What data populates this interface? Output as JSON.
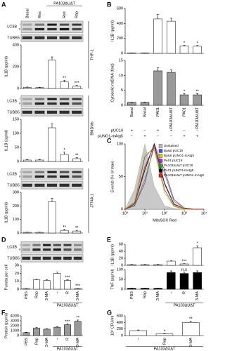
{
  "chart_data": [
    {
      "type": "bar",
      "panel": "A",
      "cell_line": "THP-1",
      "blot": {
        "rows": [
          "LC3B",
          "TUBB5"
        ],
        "bands": [
          "I",
          "II"
        ]
      },
      "ylabel": "IL1B (pg/ml)",
      "categories": [
        "Basal",
        "Res",
        null,
        "Res",
        "Rap"
      ],
      "group_label": "PA103ΔUΔT",
      "values": [
        10,
        8,
        260,
        60,
        20
      ],
      "errors": [
        3,
        2,
        30,
        15,
        8
      ],
      "significance": [
        null,
        null,
        null,
        "**",
        "***"
      ],
      "color": "#ffffff",
      "ylim": [
        0,
        400
      ],
      "yticks": [
        0,
        200,
        400
      ]
    },
    {
      "type": "bar",
      "cell_line": "BMDMs",
      "blot": {
        "rows": [
          "LC3B",
          "TUBB5"
        ],
        "bands": [
          "I",
          "II"
        ]
      },
      "ylabel": "IL1B (pg/ml)",
      "values": [
        5,
        5,
        120,
        25,
        10
      ],
      "errors": [
        2,
        2,
        15,
        8,
        4
      ],
      "significance": [
        null,
        null,
        null,
        "*",
        "**"
      ],
      "color": "#ffffff",
      "ylim": [
        0,
        150
      ],
      "yticks": [
        0,
        50,
        100,
        150
      ]
    },
    {
      "type": "bar",
      "cell_line": "J774A.1",
      "blot": {
        "rows": [
          "LC3B",
          "TUBB5"
        ],
        "bands": [
          "I",
          "II"
        ]
      },
      "ylabel": "IL1B (pg/ml)",
      "values": [
        5,
        5,
        230,
        20,
        15
      ],
      "errors": [
        2,
        2,
        25,
        6,
        5
      ],
      "significance": [
        null,
        null,
        null,
        "**",
        "**"
      ],
      "color": "#ffffff",
      "ylim": [
        0,
        300
      ],
      "yticks": [
        0,
        100,
        200,
        300
      ]
    },
    {
      "type": "bar",
      "panel": "B",
      "ylabel": "IL1B (pg/ml)",
      "values": [
        5,
        5,
        460,
        430,
        100,
        95
      ],
      "errors": [
        2,
        2,
        60,
        40,
        10,
        10
      ],
      "significance": [
        null,
        null,
        null,
        null,
        "*",
        "*"
      ],
      "color": "#ffffff",
      "ylim": [
        0,
        600
      ],
      "yticks": [
        0,
        200,
        400,
        600
      ]
    },
    {
      "type": "bar",
      "ylabel": "Cytosolic mtDNA (fold)",
      "categories": [
        "Basal",
        "Basal",
        "PA01",
        "PA103ΔUΔT",
        "PA01",
        "PA103ΔUΔT"
      ],
      "values": [
        1,
        1,
        11.5,
        11,
        3.5,
        3.5
      ],
      "errors": [
        0.1,
        0.1,
        1,
        0.8,
        0.4,
        0.4
      ],
      "significance": [
        null,
        null,
        null,
        null,
        "*",
        "**"
      ],
      "color": "#999999",
      "ylim": [
        0,
        15
      ],
      "yticks": [
        0,
        5,
        10,
        15
      ],
      "plasmids": [
        {
          "name": "pUC19",
          "signs": [
            "+",
            "−",
            "+",
            "+",
            "−",
            "−"
          ]
        },
        {
          "name": "pUNO1-mAtg5",
          "signs": [
            "−",
            "+",
            "−",
            "−",
            "+",
            "+"
          ]
        }
      ]
    },
    {
      "type": "line",
      "panel": "C",
      "ylabel": "Events (% of max)",
      "xlabel": "MitoSOX Red",
      "xlog": true,
      "legend": "upper right",
      "x": [
        1,
        3,
        10,
        30,
        100,
        300,
        1000,
        3000,
        10000
      ],
      "xlim": [
        1,
        10000
      ],
      "xticks": [
        {
          "value": 1,
          "label": "10⁰"
        },
        {
          "value": 10,
          "label": "10¹"
        },
        {
          "value": 100,
          "label": "10²"
        },
        {
          "value": 1000,
          "label": "10³"
        },
        {
          "value": 10000,
          "label": "10⁴"
        }
      ],
      "ylim": [
        0,
        100
      ],
      "yticks": [
        0,
        50,
        100
      ],
      "series": [
        {
          "name": "Unstained",
          "color": "#bbbbbb",
          "filled": true,
          "values": [
            0,
            30,
            100,
            35,
            5,
            1,
            0,
            0,
            0
          ]
        },
        {
          "name": "Basal pUC19",
          "color": "#2f5fd0",
          "values": [
            0,
            10,
            80,
            95,
            30,
            5,
            0,
            0,
            0
          ]
        },
        {
          "name": "Basal pUNO1-mAtg5",
          "color": "#e0c000",
          "values": [
            0,
            12,
            85,
            90,
            25,
            4,
            0,
            0,
            0
          ]
        },
        {
          "name": "PA01 pUC19",
          "color": "#9b30c8",
          "values": [
            0,
            5,
            40,
            100,
            60,
            15,
            2,
            0,
            0
          ]
        },
        {
          "name": "PA103ΔUΔT pUC19",
          "color": "#30a030",
          "values": [
            0,
            6,
            45,
            95,
            55,
            12,
            2,
            0,
            0
          ]
        },
        {
          "name": "PA01 pUNO1-mAtg5",
          "color": "#000000",
          "values": [
            0,
            8,
            60,
            100,
            40,
            8,
            1,
            0,
            0
          ]
        },
        {
          "name": "PA103ΔUΔT pUNO1-mAtg5",
          "color": "#e02020",
          "values": [
            0,
            8,
            65,
            98,
            38,
            7,
            1,
            0,
            0
          ]
        }
      ]
    },
    {
      "type": "bar",
      "panel": "D",
      "blot": {
        "rows": [
          "LC3B",
          "TUBB5"
        ],
        "bands": [
          "I",
          "II"
        ]
      },
      "ylabel": "Puncta per cell",
      "categories": [
        "PBS",
        "Rap",
        "3-MA",
        "−",
        "R",
        "3-MA"
      ],
      "group_label": "PA103ΔUΔT",
      "values": [
        1,
        12,
        11,
        20,
        11,
        1
      ],
      "errors": [
        0.3,
        1,
        1,
        1.5,
        1,
        0.3
      ],
      "significance": [
        null,
        null,
        null,
        null,
        "***",
        "***"
      ],
      "color": "#ffffff",
      "ylim": [
        0,
        30
      ],
      "yticks": [
        0,
        10,
        20,
        30
      ]
    },
    {
      "type": "bar",
      "panel": "E",
      "ylabel": "IL1B (pg/ml)",
      "values": [
        2,
        2,
        2,
        12,
        4,
        50
      ],
      "errors": [
        1,
        1,
        1,
        2,
        1,
        6
      ],
      "significance": [
        null,
        null,
        null,
        null,
        "***",
        "*"
      ],
      "color": "#ffffff",
      "ylim": [
        0,
        60
      ],
      "yticks": [
        0,
        20,
        40,
        60
      ]
    },
    {
      "type": "bar",
      "ylabel": "TNF (pg/ml)",
      "categories": [
        "PBS",
        "Rap",
        "3-MA",
        "−",
        "R",
        "3-MA"
      ],
      "group_label": "PA103ΔUΔT",
      "values": [
        5,
        5,
        5,
        85,
        80,
        85
      ],
      "errors": [
        1,
        1,
        1,
        8,
        8,
        8
      ],
      "significance": [
        null,
        null,
        null,
        null,
        "n.s",
        null
      ],
      "color": "#000000",
      "ylim": [
        0,
        100
      ],
      "yticks": [
        0,
        50,
        100
      ]
    },
    {
      "type": "bar",
      "panel": "F",
      "ylabel": "Protein (pg/ml)",
      "categories": [
        "PBS",
        "Rap",
        "3-MA",
        "−",
        "R",
        "3-MA"
      ],
      "group_label": "PA103ΔUΔT",
      "values": [
        600,
        1500,
        1300,
        1700,
        2200,
        2900
      ],
      "errors": [
        80,
        150,
        100,
        150,
        200,
        250
      ],
      "significance": [
        null,
        null,
        null,
        null,
        "***",
        "**"
      ],
      "color": "#999999",
      "ylim": [
        0,
        4000
      ],
      "yticks": [
        0,
        1000,
        2000,
        3000,
        4000
      ]
    },
    {
      "type": "bar",
      "panel": "G",
      "ylabel": "10⁵ CFU/ml",
      "categories": [
        "−",
        "Rap",
        "3-MA"
      ],
      "group_label": "PA103ΔUΔT",
      "values": [
        150,
        50,
        400
      ],
      "errors": [
        20,
        10,
        40
      ],
      "significance": [
        null,
        "*",
        "**"
      ],
      "color": "#ffffff",
      "ylim": [
        0,
        600
      ],
      "yticks": [
        0,
        200,
        400,
        600
      ]
    }
  ]
}
